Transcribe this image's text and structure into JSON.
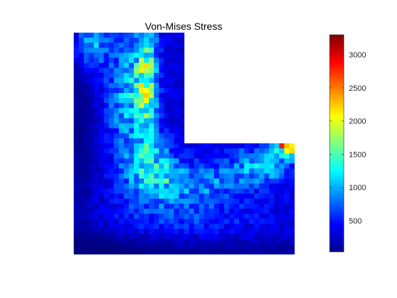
{
  "chart_data": {
    "type": "heatmap",
    "title": "Von-Mises Stress",
    "colormap": "jet",
    "grid": false,
    "axes_visible": false,
    "domain_shape": "L-shaped plate: full-width lower region with an upper-left column; upper-right region empty",
    "color_range": [
      30,
      3300
    ],
    "colorbar": {
      "position": "right",
      "ticks": [
        500,
        1000,
        1500,
        2000,
        2500,
        3000
      ],
      "tick_labels": [
        "500",
        "1000",
        "1500",
        "2000",
        "2500",
        "3000"
      ]
    },
    "stress_features": [
      {
        "region": "left column, upper part",
        "level": "high streaks near x≈0.33",
        "approx_value": 1500
      },
      {
        "region": "reentrant corner and diagonal band",
        "level": "moderate to high",
        "approx_value": 1300
      },
      {
        "region": "upper-right tip of horizontal arm",
        "level": "maximum",
        "approx_value": 3300
      },
      {
        "region": "left column, far left strip",
        "level": "low",
        "approx_value": 200
      },
      {
        "region": "bottom edge",
        "level": "low",
        "approx_value": 150
      }
    ]
  },
  "colors": {
    "background": "#ffffff",
    "axes_background": "#ffffff"
  }
}
